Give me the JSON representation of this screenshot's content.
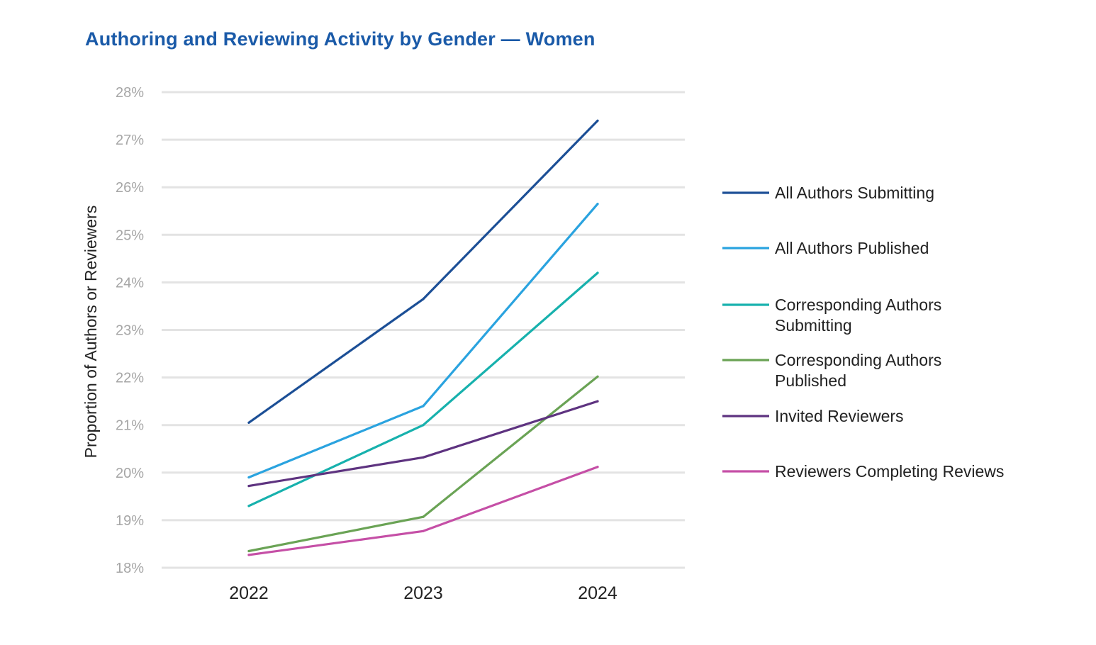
{
  "chart_data": {
    "type": "line",
    "title": "Authoring and Reviewing Activity by Gender — Women",
    "xlabel": "",
    "ylabel": "Proportion of Authors or Reviewers",
    "x": [
      "2022",
      "2023",
      "2024"
    ],
    "ylim": [
      18,
      28
    ],
    "yticks": [
      18,
      19,
      20,
      21,
      22,
      23,
      24,
      25,
      26,
      27,
      28
    ],
    "ytick_labels": [
      "18%",
      "19%",
      "20%",
      "21%",
      "22%",
      "23%",
      "24%",
      "25%",
      "26%",
      "27%",
      "28%"
    ],
    "grid": true,
    "legend_position": "right",
    "series": [
      {
        "name": "All Authors Submitting",
        "legend_lines": [
          "All Authors Submitting"
        ],
        "color": "#1c4f96",
        "values": [
          21.05,
          23.65,
          27.4
        ]
      },
      {
        "name": "All Authors Published",
        "legend_lines": [
          "All Authors Published"
        ],
        "color": "#2aa3df",
        "values": [
          19.9,
          21.4,
          25.65
        ]
      },
      {
        "name": "Corresponding Authors Submitting",
        "legend_lines": [
          "Corresponding Authors",
          "Submitting"
        ],
        "color": "#17b1ad",
        "values": [
          19.3,
          21.0,
          24.2
        ]
      },
      {
        "name": "Corresponding Authors Published",
        "legend_lines": [
          "Corresponding Authors",
          "Published"
        ],
        "color": "#6aa355",
        "values": [
          18.35,
          19.07,
          22.02
        ]
      },
      {
        "name": "Invited Reviewers",
        "legend_lines": [
          "Invited Reviewers"
        ],
        "color": "#5e3380",
        "values": [
          19.72,
          20.32,
          21.5
        ]
      },
      {
        "name": "Reviewers Completing Reviews",
        "legend_lines": [
          "Reviewers Completing Reviews"
        ],
        "color": "#c54fa6",
        "values": [
          18.27,
          18.77,
          20.12
        ]
      }
    ]
  }
}
